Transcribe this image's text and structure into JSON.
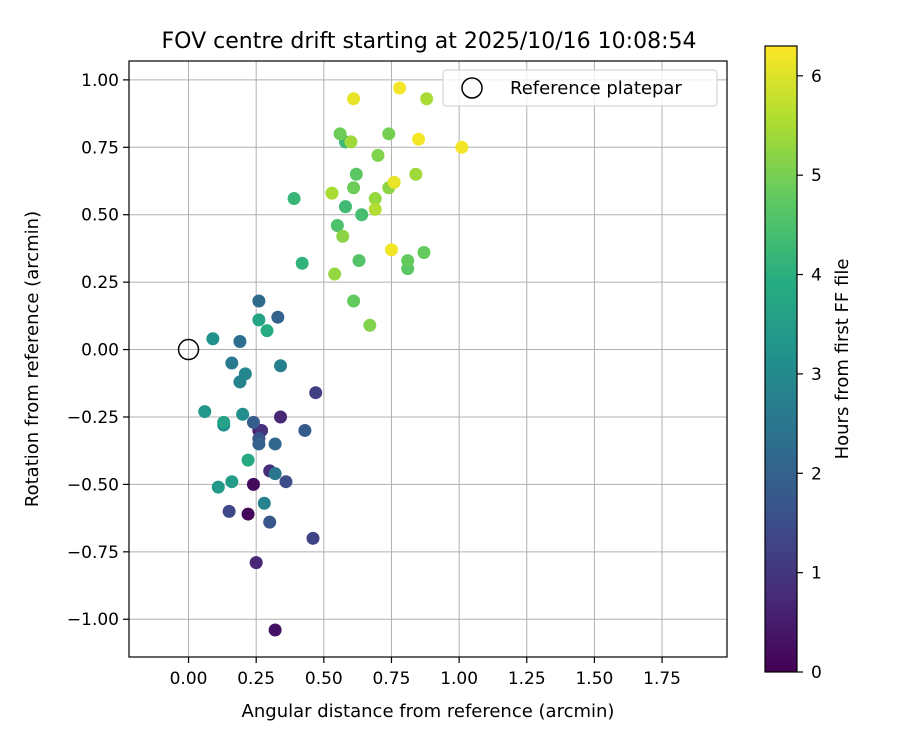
{
  "chart_data": {
    "type": "scatter",
    "title": "FOV centre drift starting at 2025/10/16 10:08:54",
    "xlabel": "Angular distance from reference (arcmin)",
    "ylabel": "Rotation from reference (arcmin)",
    "xlim": [
      -0.22,
      1.99
    ],
    "ylim": [
      -1.14,
      1.07
    ],
    "grid": true,
    "x_ticks": [
      0.0,
      0.25,
      0.5,
      0.75,
      1.0,
      1.25,
      1.5,
      1.75
    ],
    "x_tick_labels": [
      "0.00",
      "0.25",
      "0.50",
      "0.75",
      "1.00",
      "1.25",
      "1.50",
      "1.75"
    ],
    "y_ticks": [
      -1.0,
      -0.75,
      -0.5,
      -0.25,
      0.0,
      0.25,
      0.5,
      0.75,
      1.0
    ],
    "y_tick_labels": [
      "−1.00",
      "−0.75",
      "−0.50",
      "−0.25",
      "0.00",
      "0.25",
      "0.50",
      "0.75",
      "1.00"
    ],
    "legend": {
      "label": "Reference platepar",
      "position": "top-right"
    },
    "reference_point": {
      "x": 0.0,
      "y": 0.0
    },
    "colorbar": {
      "label": "Hours from first FF file",
      "min": 0,
      "max": 6.3,
      "colormap": "viridis",
      "ticks": [
        0,
        1,
        2,
        3,
        4,
        5,
        6
      ],
      "tick_labels": [
        "0",
        "1",
        "2",
        "3",
        "4",
        "5",
        "6"
      ]
    },
    "points": [
      {
        "x": 0.22,
        "y": -0.61,
        "t": 0.1
      },
      {
        "x": 0.24,
        "y": -0.5,
        "t": 0.2
      },
      {
        "x": 0.32,
        "y": -1.04,
        "t": 0.3
      },
      {
        "x": 0.26,
        "y": -0.3,
        "t": 0.5
      },
      {
        "x": 0.25,
        "y": -0.79,
        "t": 0.7
      },
      {
        "x": 0.34,
        "y": -0.25,
        "t": 0.7
      },
      {
        "x": 0.3,
        "y": -0.45,
        "t": 0.8
      },
      {
        "x": 0.27,
        "y": -0.3,
        "t": 0.9
      },
      {
        "x": 0.47,
        "y": -0.16,
        "t": 1.2
      },
      {
        "x": 0.46,
        "y": -0.7,
        "t": 1.3
      },
      {
        "x": 0.15,
        "y": -0.6,
        "t": 1.4
      },
      {
        "x": 0.36,
        "y": -0.49,
        "t": 1.5
      },
      {
        "x": 0.26,
        "y": -0.33,
        "t": 1.6
      },
      {
        "x": 0.3,
        "y": -0.64,
        "t": 1.7
      },
      {
        "x": 0.43,
        "y": -0.3,
        "t": 1.8
      },
      {
        "x": 0.24,
        "y": -0.27,
        "t": 1.9
      },
      {
        "x": 0.26,
        "y": -0.35,
        "t": 2.0
      },
      {
        "x": 0.33,
        "y": 0.12,
        "t": 2.0
      },
      {
        "x": 0.32,
        "y": -0.35,
        "t": 2.1
      },
      {
        "x": 0.26,
        "y": 0.18,
        "t": 2.2
      },
      {
        "x": 0.19,
        "y": 0.03,
        "t": 2.3
      },
      {
        "x": 0.32,
        "y": -0.46,
        "t": 2.5
      },
      {
        "x": 0.16,
        "y": -0.05,
        "t": 2.6
      },
      {
        "x": 0.34,
        "y": -0.06,
        "t": 2.7
      },
      {
        "x": 0.19,
        "y": -0.12,
        "t": 2.8
      },
      {
        "x": 0.28,
        "y": -0.57,
        "t": 2.8
      },
      {
        "x": 0.21,
        "y": -0.09,
        "t": 2.9
      },
      {
        "x": 0.13,
        "y": -0.28,
        "t": 3.0
      },
      {
        "x": 0.2,
        "y": -0.24,
        "t": 3.1
      },
      {
        "x": 0.09,
        "y": 0.04,
        "t": 3.2
      },
      {
        "x": 0.06,
        "y": -0.23,
        "t": 3.3
      },
      {
        "x": 0.11,
        "y": -0.51,
        "t": 3.4
      },
      {
        "x": 0.16,
        "y": -0.49,
        "t": 3.5
      },
      {
        "x": 0.13,
        "y": -0.27,
        "t": 3.6
      },
      {
        "x": 0.26,
        "y": 0.11,
        "t": 3.7
      },
      {
        "x": 0.22,
        "y": -0.41,
        "t": 3.8
      },
      {
        "x": 0.29,
        "y": 0.07,
        "t": 3.9
      },
      {
        "x": 0.42,
        "y": 0.32,
        "t": 4.1
      },
      {
        "x": 0.39,
        "y": 0.56,
        "t": 4.2
      },
      {
        "x": 0.58,
        "y": 0.77,
        "t": 4.3
      },
      {
        "x": 0.58,
        "y": 0.53,
        "t": 4.3
      },
      {
        "x": 0.64,
        "y": 0.5,
        "t": 4.4
      },
      {
        "x": 0.55,
        "y": 0.46,
        "t": 4.5
      },
      {
        "x": 0.63,
        "y": 0.33,
        "t": 4.6
      },
      {
        "x": 0.62,
        "y": 0.65,
        "t": 4.7
      },
      {
        "x": 0.81,
        "y": 0.3,
        "t": 4.7
      },
      {
        "x": 0.81,
        "y": 0.33,
        "t": 4.8
      },
      {
        "x": 0.87,
        "y": 0.36,
        "t": 4.8
      },
      {
        "x": 0.61,
        "y": 0.18,
        "t": 4.8
      },
      {
        "x": 0.56,
        "y": 0.8,
        "t": 4.9
      },
      {
        "x": 0.61,
        "y": 0.6,
        "t": 4.9
      },
      {
        "x": 0.74,
        "y": 0.8,
        "t": 5.0
      },
      {
        "x": 0.7,
        "y": 0.72,
        "t": 5.1
      },
      {
        "x": 0.67,
        "y": 0.09,
        "t": 5.1
      },
      {
        "x": 0.57,
        "y": 0.42,
        "t": 5.2
      },
      {
        "x": 0.74,
        "y": 0.6,
        "t": 5.2
      },
      {
        "x": 0.69,
        "y": 0.56,
        "t": 5.3
      },
      {
        "x": 0.54,
        "y": 0.28,
        "t": 5.3
      },
      {
        "x": 0.6,
        "y": 0.77,
        "t": 5.4
      },
      {
        "x": 0.84,
        "y": 0.65,
        "t": 5.4
      },
      {
        "x": 0.88,
        "y": 0.93,
        "t": 5.5
      },
      {
        "x": 0.53,
        "y": 0.58,
        "t": 5.5
      },
      {
        "x": 0.69,
        "y": 0.52,
        "t": 5.6
      },
      {
        "x": 0.76,
        "y": 0.62,
        "t": 6.1
      },
      {
        "x": 0.61,
        "y": 0.93,
        "t": 6.1
      },
      {
        "x": 0.78,
        "y": 0.97,
        "t": 6.2
      },
      {
        "x": 0.85,
        "y": 0.78,
        "t": 6.2
      },
      {
        "x": 1.01,
        "y": 0.75,
        "t": 6.2
      },
      {
        "x": 0.75,
        "y": 0.37,
        "t": 6.2
      }
    ]
  }
}
